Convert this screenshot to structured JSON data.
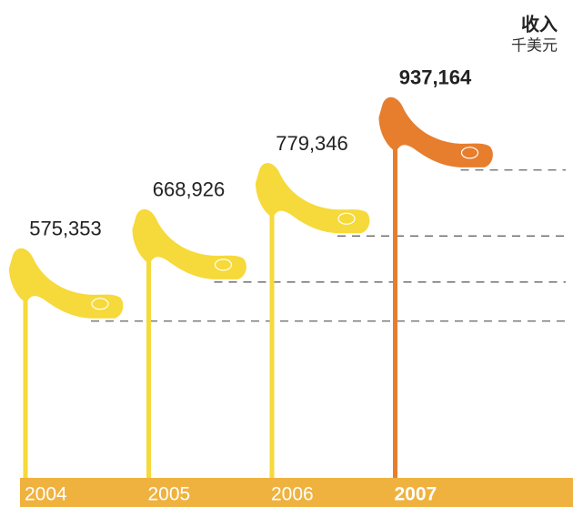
{
  "chart_data": {
    "type": "pictograph",
    "title": "收入",
    "subtitle": "千美元",
    "categories": [
      "2004",
      "2005",
      "2006",
      "2007"
    ],
    "values": [
      575353,
      668926,
      779346,
      937164
    ],
    "value_labels": [
      "575,353",
      "668,926",
      "779,346",
      "937,164"
    ],
    "ylim": [
      200000,
      1000000
    ],
    "color": "#f6d93a",
    "highlight": "2007",
    "highlight_color": "#e67e2e",
    "highlight_label_color": "#c8282d",
    "band_color": "#f0b23f",
    "guide_color": "#555555"
  }
}
